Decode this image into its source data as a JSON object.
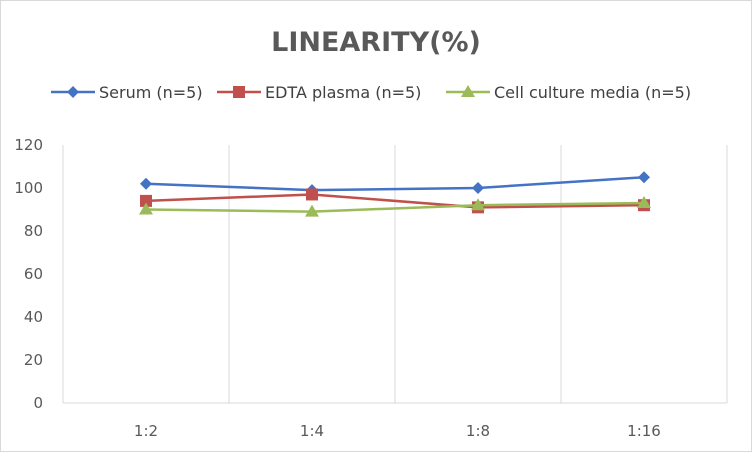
{
  "chart_data": {
    "type": "line",
    "title": "LINEARITY(%)",
    "xlabel": "",
    "ylabel": "",
    "categories": [
      "1:2",
      "1:4",
      "1:8",
      "1:16"
    ],
    "ylim": [
      0,
      120
    ],
    "yticks": [
      0,
      20,
      40,
      60,
      80,
      100,
      120
    ],
    "grid": "vertical",
    "legend_position": "top",
    "series": [
      {
        "name": "Serum (n=5)",
        "values": [
          102,
          99,
          100,
          105
        ],
        "color": "#4472C4",
        "marker": "diamond"
      },
      {
        "name": "EDTA plasma (n=5)",
        "values": [
          94,
          97,
          91,
          92
        ],
        "color": "#C0504D",
        "marker": "square"
      },
      {
        "name": "Cell culture media (n=5)",
        "values": [
          90,
          89,
          92,
          93
        ],
        "color": "#9BBB59",
        "marker": "triangle"
      }
    ]
  }
}
